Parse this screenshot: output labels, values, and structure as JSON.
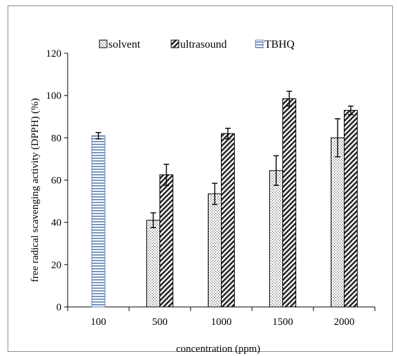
{
  "chart_data": {
    "type": "bar",
    "title": "",
    "xlabel": "concentration (ppm)",
    "ylabel": "free radical scavenging activity (DPPH) (%)",
    "categories": [
      "100",
      "500",
      "1000",
      "1500",
      "2000"
    ],
    "ylim": [
      0,
      120
    ],
    "yticks": [
      0,
      20,
      40,
      60,
      80,
      100,
      120
    ],
    "grid": false,
    "legend_position": "top",
    "series": [
      {
        "name": "solvent",
        "pattern": "dots",
        "color": "#d9d9d9",
        "values": [
          null,
          41,
          53.5,
          64.5,
          80
        ],
        "errors": [
          null,
          3.5,
          5,
          7,
          9
        ]
      },
      {
        "name": "ultrasound",
        "pattern": "diagonal-hatch",
        "color": "#262626",
        "values": [
          null,
          62.5,
          82,
          98.5,
          93
        ],
        "errors": [
          null,
          5,
          2.5,
          3.5,
          2
        ]
      },
      {
        "name": "TBHQ",
        "pattern": "horizontal-stripes",
        "color": "#5b7fb5",
        "values": [
          81,
          null,
          null,
          null,
          null
        ],
        "errors": [
          1.5,
          null,
          null,
          null,
          null
        ]
      }
    ]
  }
}
